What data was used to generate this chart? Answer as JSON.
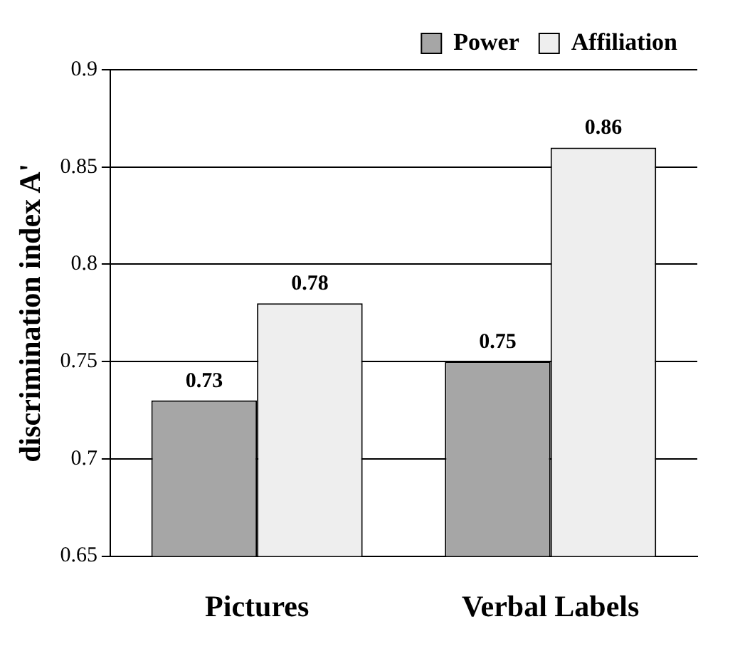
{
  "chart_data": {
    "type": "bar",
    "ylabel": "discrimination index A'",
    "categories": [
      "Pictures",
      "Verbal Labels"
    ],
    "series": [
      {
        "name": "Power",
        "color": "#a6a6a6",
        "values": [
          0.73,
          0.75
        ]
      },
      {
        "name": "Affiliation",
        "color": "#eeeeee",
        "values": [
          0.78,
          0.86
        ]
      }
    ],
    "ylim": [
      0.65,
      0.9
    ],
    "yticks": [
      0.65,
      0.7,
      0.75,
      0.8,
      0.85,
      0.9
    ],
    "grid": "y",
    "legend": "top right",
    "data_labels": true
  }
}
